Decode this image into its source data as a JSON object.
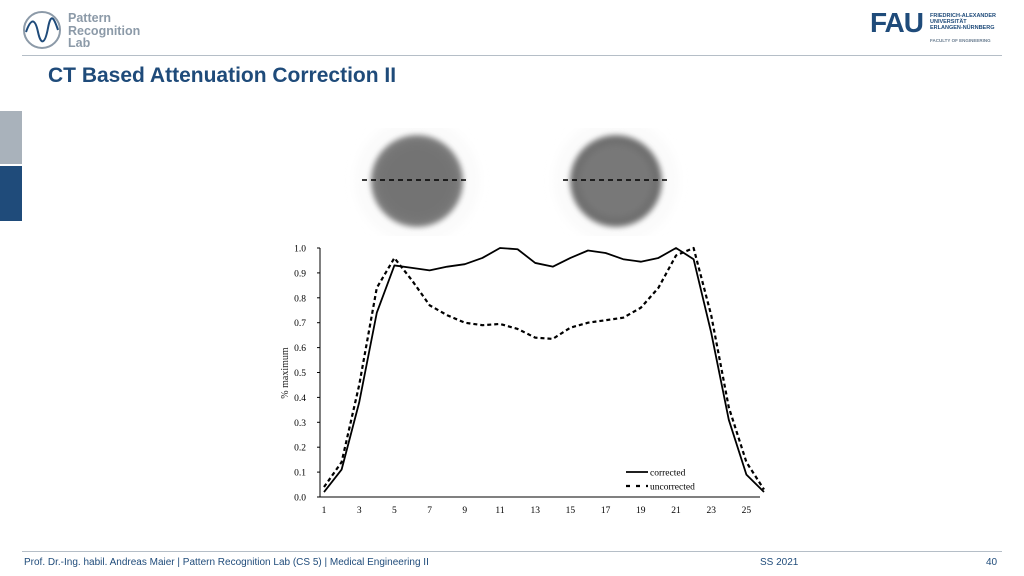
{
  "header": {
    "lab_logo": {
      "lines": [
        "Pattern",
        "Recognition",
        "Lab"
      ],
      "icon": "pattern-recognition-lab-logo-icon"
    },
    "fau_logo": {
      "mark": "FAU",
      "lines": [
        "FRIEDRICH-ALEXANDER",
        "UNIVERSITÄT",
        "ERLANGEN-NÜRNBERG"
      ],
      "faculty": "FACULTY OF ENGINEERING"
    }
  },
  "slide": {
    "title": "CT Based Attenuation Correction II"
  },
  "colors": {
    "accent": "#1f4b7a",
    "grey": "#a9b2bb"
  },
  "chart_data": {
    "type": "line",
    "x": [
      1,
      2,
      3,
      4,
      5,
      6,
      7,
      8,
      9,
      10,
      11,
      12,
      13,
      14,
      15,
      16,
      17,
      18,
      19,
      20,
      21,
      22,
      23,
      24,
      25,
      26
    ],
    "xticks": [
      "1",
      "3",
      "5",
      "7",
      "9",
      "11",
      "13",
      "15",
      "17",
      "19",
      "21",
      "23",
      "25"
    ],
    "yticks": [
      "0.0",
      "0.1",
      "0.2",
      "0.3",
      "0.4",
      "0.5",
      "0.6",
      "0.7",
      "0.8",
      "0.9",
      "1.0"
    ],
    "xlim": [
      1,
      26
    ],
    "ylim": [
      0,
      1
    ],
    "ylabel": "% maximum",
    "xlabel": "",
    "title": "",
    "legend": {
      "position": "bottom-right"
    },
    "series": [
      {
        "name": "corrected",
        "style": "solid",
        "values": [
          0.02,
          0.11,
          0.38,
          0.74,
          0.93,
          0.92,
          0.91,
          0.925,
          0.935,
          0.96,
          1.0,
          0.995,
          0.94,
          0.925,
          0.96,
          0.99,
          0.98,
          0.955,
          0.945,
          0.96,
          1.0,
          0.955,
          0.66,
          0.31,
          0.09,
          0.02
        ]
      },
      {
        "name": "uncorrected",
        "style": "dashed",
        "values": [
          0.04,
          0.14,
          0.45,
          0.84,
          0.96,
          0.87,
          0.77,
          0.73,
          0.7,
          0.69,
          0.695,
          0.675,
          0.64,
          0.635,
          0.68,
          0.7,
          0.71,
          0.72,
          0.76,
          0.84,
          0.97,
          1.0,
          0.73,
          0.36,
          0.14,
          0.03
        ]
      }
    ]
  },
  "footer": {
    "left": "Prof. Dr.-Ing. habil. Andreas Maier  |  Pattern Recognition Lab (CS 5)  |  Medical Engineering II",
    "semester": "SS 2021",
    "page": "40"
  }
}
